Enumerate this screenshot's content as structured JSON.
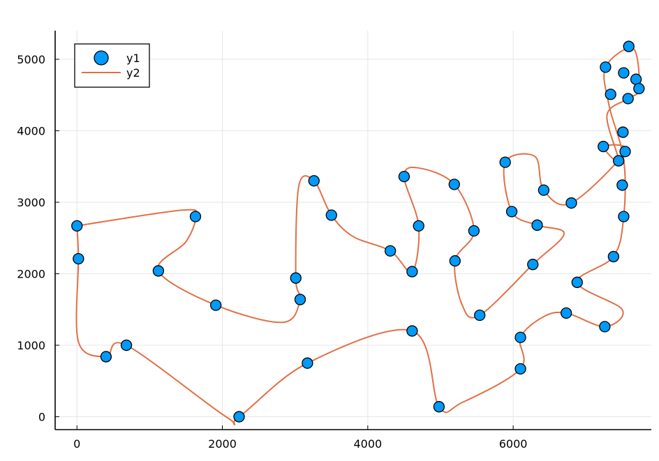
{
  "chart_data": {
    "type": "scatter",
    "title": "",
    "xlabel": "",
    "ylabel": "",
    "xlim": [
      -300,
      7900
    ],
    "ylim": [
      -180,
      5400
    ],
    "xticks": [
      0,
      2000,
      4000,
      6000
    ],
    "yticks": [
      0,
      1000,
      2000,
      3000,
      4000,
      5000
    ],
    "grid": true,
    "legend": "top-left",
    "colors": {
      "y1": "#009AFA",
      "y2": "#E26F46"
    },
    "series": [
      {
        "name": "y1",
        "kind": "scatter",
        "points": [
          [
            0,
            2670
          ],
          [
            20,
            2210
          ],
          [
            400,
            840
          ],
          [
            680,
            1000
          ],
          [
            1120,
            2040
          ],
          [
            1630,
            2800
          ],
          [
            1910,
            1560
          ],
          [
            2230,
            0
          ],
          [
            3010,
            1940
          ],
          [
            3070,
            1640
          ],
          [
            3170,
            750
          ],
          [
            3260,
            3300
          ],
          [
            3500,
            2820
          ],
          [
            4310,
            2320
          ],
          [
            4500,
            3360
          ],
          [
            4610,
            2030
          ],
          [
            4610,
            1200
          ],
          [
            4700,
            2670
          ],
          [
            4980,
            140
          ],
          [
            5190,
            3250
          ],
          [
            5200,
            2180
          ],
          [
            5460,
            2600
          ],
          [
            5540,
            1420
          ],
          [
            5890,
            3560
          ],
          [
            5980,
            2870
          ],
          [
            6100,
            1110
          ],
          [
            6100,
            670
          ],
          [
            6270,
            2130
          ],
          [
            6330,
            2680
          ],
          [
            6420,
            3170
          ],
          [
            6730,
            1450
          ],
          [
            6800,
            2990
          ],
          [
            6880,
            1880
          ],
          [
            7240,
            3780
          ],
          [
            7260,
            1260
          ],
          [
            7270,
            4890
          ],
          [
            7340,
            4510
          ],
          [
            7380,
            2240
          ],
          [
            7450,
            3580
          ],
          [
            7500,
            3240
          ],
          [
            7510,
            3980
          ],
          [
            7520,
            2800
          ],
          [
            7520,
            4810
          ],
          [
            7540,
            3710
          ],
          [
            7580,
            4450
          ],
          [
            7590,
            5180
          ],
          [
            7690,
            4720
          ],
          [
            7730,
            4590
          ]
        ]
      },
      {
        "name": "y2",
        "kind": "line",
        "points": [
          [
            0,
            2670
          ],
          [
            1450,
            2890
          ],
          [
            1630,
            2800
          ],
          [
            1500,
            2450
          ],
          [
            1120,
            2040
          ],
          [
            1910,
            1560
          ],
          [
            2830,
            1320
          ],
          [
            3070,
            1640
          ],
          [
            3010,
            1940
          ],
          [
            3050,
            3220
          ],
          [
            3260,
            3300
          ],
          [
            3500,
            2820
          ],
          [
            3800,
            2520
          ],
          [
            4310,
            2320
          ],
          [
            4610,
            2030
          ],
          [
            4700,
            2670
          ],
          [
            4500,
            3360
          ],
          [
            4700,
            3480
          ],
          [
            5190,
            3250
          ],
          [
            5460,
            2600
          ],
          [
            5200,
            2180
          ],
          [
            5300,
            1560
          ],
          [
            5540,
            1420
          ],
          [
            6270,
            2130
          ],
          [
            6700,
            2560
          ],
          [
            6330,
            2680
          ],
          [
            5980,
            2870
          ],
          [
            5890,
            3560
          ],
          [
            6300,
            3640
          ],
          [
            6420,
            3170
          ],
          [
            6800,
            2990
          ],
          [
            7540,
            3710
          ],
          [
            7240,
            3780
          ],
          [
            7450,
            3580
          ],
          [
            7290,
            4220
          ],
          [
            7580,
            4450
          ],
          [
            7730,
            4590
          ],
          [
            7650,
            5150
          ],
          [
            7270,
            4890
          ],
          [
            7320,
            4350
          ],
          [
            7520,
            3600
          ],
          [
            7520,
            2800
          ],
          [
            7380,
            2240
          ],
          [
            6880,
            1880
          ],
          [
            7500,
            1500
          ],
          [
            7260,
            1260
          ],
          [
            6730,
            1450
          ],
          [
            6420,
            1400
          ],
          [
            6100,
            1110
          ],
          [
            6100,
            670
          ],
          [
            5300,
            200
          ],
          [
            4980,
            140
          ],
          [
            4610,
            1200
          ],
          [
            3170,
            750
          ],
          [
            2230,
            0
          ],
          [
            2050,
            0
          ],
          [
            680,
            1000
          ],
          [
            400,
            840
          ],
          [
            20,
            1050
          ],
          [
            20,
            2210
          ],
          [
            0,
            2670
          ]
        ]
      }
    ]
  }
}
